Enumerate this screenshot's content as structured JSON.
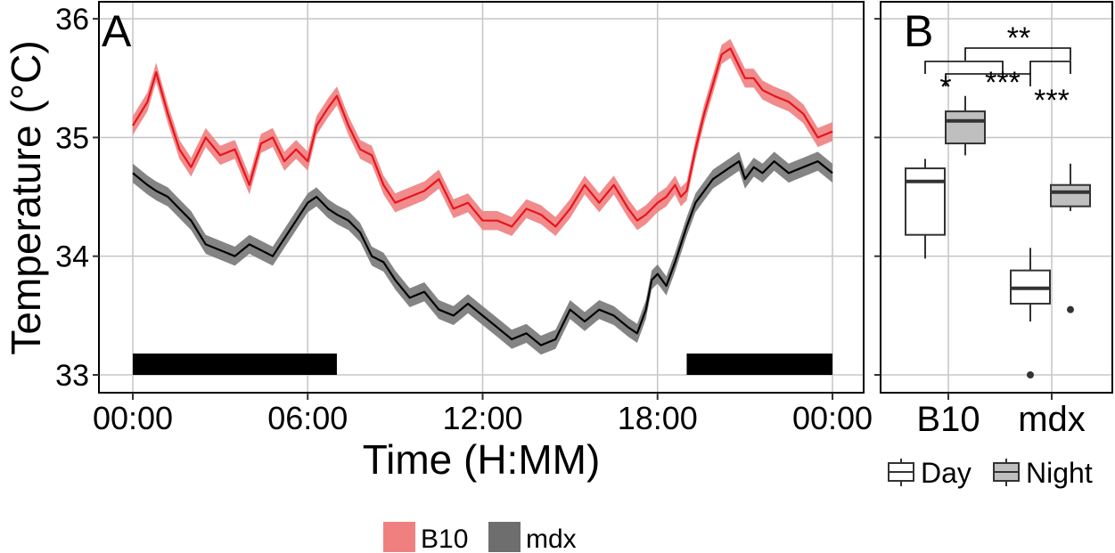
{
  "chart_data": [
    {
      "panel": "A",
      "type": "line",
      "xlabel": "Time (H:MM)",
      "ylabel": "Temperature (°C)",
      "xlim": [
        0,
        24
      ],
      "ylim": [
        32.95,
        36.1
      ],
      "grid": true,
      "legend_position": "bottom",
      "x_ticks": [
        {
          "value": 0,
          "label": "00:00"
        },
        {
          "value": 6,
          "label": "06:00"
        },
        {
          "value": 12,
          "label": "12:00"
        },
        {
          "value": 18,
          "label": "18:00"
        },
        {
          "value": 24,
          "label": "00:00"
        }
      ],
      "y_ticks": [
        {
          "value": 33,
          "label": "33"
        },
        {
          "value": 34,
          "label": "34"
        },
        {
          "value": 35,
          "label": "35"
        },
        {
          "value": 36,
          "label": "36"
        }
      ],
      "dark_bars": [
        {
          "start": 0,
          "end": 7.0
        },
        {
          "start": 19.0,
          "end": 24
        }
      ],
      "x": [
        0,
        0.5,
        0.8,
        1.2,
        1.6,
        2.0,
        2.5,
        3.0,
        3.5,
        4.0,
        4.4,
        4.8,
        5.2,
        5.6,
        6.0,
        6.3,
        6.7,
        7.0,
        7.4,
        7.8,
        8.2,
        8.6,
        9.0,
        9.5,
        10.0,
        10.5,
        11.0,
        11.5,
        12.0,
        12.5,
        13.0,
        13.5,
        14.0,
        14.5,
        15.0,
        15.5,
        16.0,
        16.5,
        17.0,
        17.3,
        17.6,
        17.8,
        18.0,
        18.3,
        18.6,
        18.8,
        19.0,
        19.3,
        19.6,
        19.9,
        20.2,
        20.5,
        20.8,
        21.0,
        21.3,
        21.6,
        22.0,
        22.5,
        23.0,
        23.5,
        24.0
      ],
      "series": [
        {
          "name": "B10",
          "color": "#e8141c",
          "band_color": "#f08080",
          "band_halfwidth": 0.08,
          "values": [
            35.1,
            35.3,
            35.55,
            35.2,
            34.9,
            34.75,
            35.0,
            34.85,
            34.9,
            34.6,
            34.95,
            35.0,
            34.8,
            34.9,
            34.8,
            35.1,
            35.25,
            35.35,
            35.1,
            34.9,
            34.85,
            34.6,
            34.45,
            34.5,
            34.55,
            34.65,
            34.4,
            34.45,
            34.3,
            34.3,
            34.25,
            34.4,
            34.35,
            34.25,
            34.4,
            34.6,
            34.45,
            34.6,
            34.4,
            34.3,
            34.35,
            34.4,
            34.45,
            34.5,
            34.6,
            34.5,
            34.55,
            34.9,
            35.2,
            35.45,
            35.7,
            35.75,
            35.6,
            35.5,
            35.5,
            35.4,
            35.35,
            35.3,
            35.2,
            35.0,
            35.05
          ]
        },
        {
          "name": "mdx",
          "color": "#000000",
          "band_color": "#777777",
          "band_halfwidth": 0.08,
          "values": [
            34.7,
            34.6,
            34.55,
            34.5,
            34.4,
            34.3,
            34.1,
            34.05,
            34.0,
            34.1,
            34.05,
            34.0,
            34.15,
            34.3,
            34.45,
            34.5,
            34.4,
            34.35,
            34.3,
            34.2,
            34.0,
            33.95,
            33.8,
            33.65,
            33.7,
            33.55,
            33.5,
            33.6,
            33.5,
            33.4,
            33.3,
            33.35,
            33.25,
            33.3,
            33.55,
            33.45,
            33.55,
            33.5,
            33.4,
            33.35,
            33.55,
            33.8,
            33.85,
            33.75,
            33.95,
            34.1,
            34.25,
            34.45,
            34.55,
            34.65,
            34.7,
            34.75,
            34.8,
            34.65,
            34.75,
            34.7,
            34.8,
            34.7,
            34.75,
            34.8,
            34.7
          ]
        }
      ]
    },
    {
      "panel": "B",
      "type": "box",
      "categories": [
        "B10",
        "mdx"
      ],
      "ylim": [
        32.95,
        36.1
      ],
      "grid": true,
      "legend_position": "bottom",
      "legend": [
        {
          "name": "Day",
          "color": "#ffffff"
        },
        {
          "name": "Night",
          "color": "#bfbfbf"
        }
      ],
      "boxes": [
        {
          "group": "B10",
          "condition": "Day",
          "min": 33.98,
          "q1": 34.18,
          "median": 34.63,
          "q3": 34.74,
          "max": 34.82,
          "outliers": []
        },
        {
          "group": "B10",
          "condition": "Night",
          "min": 34.85,
          "q1": 34.95,
          "median": 35.14,
          "q3": 35.22,
          "max": 35.35,
          "outliers": []
        },
        {
          "group": "mdx",
          "condition": "Day",
          "min": 33.45,
          "q1": 33.6,
          "median": 33.73,
          "q3": 33.88,
          "max": 34.07,
          "outliers": [
            33.0
          ]
        },
        {
          "group": "mdx",
          "condition": "Night",
          "min": 34.38,
          "q1": 34.42,
          "median": 34.54,
          "q3": 34.6,
          "max": 34.78,
          "outliers": [
            33.55
          ]
        }
      ],
      "significance": [
        {
          "label": "**",
          "between": [
            "B10",
            "mdx"
          ]
        },
        {
          "label": "*",
          "between": [
            "B10 Day",
            "B10 Night"
          ]
        },
        {
          "label": "***",
          "between": [
            "B10 Night",
            "mdx Night"
          ]
        },
        {
          "label": "***",
          "between": [
            "mdx Day",
            "mdx Night"
          ]
        }
      ]
    }
  ],
  "panel_labels": {
    "a": "A",
    "b": "B"
  },
  "legend_a": [
    {
      "name": "B10",
      "color": "#f08080"
    },
    {
      "name": "mdx",
      "color": "#6e6e6e"
    }
  ]
}
